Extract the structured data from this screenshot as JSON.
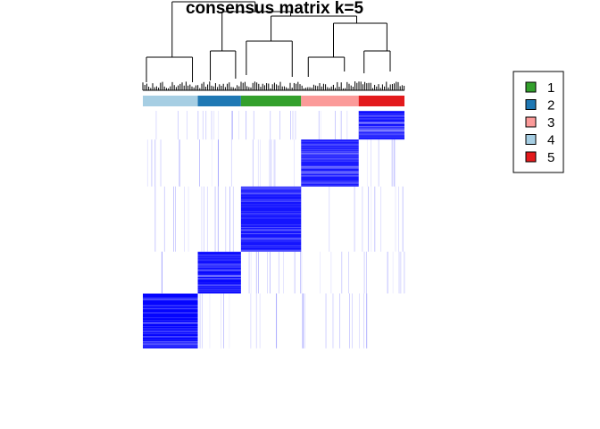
{
  "title": "consensus matrix k=5",
  "chart_data": {
    "type": "heatmap",
    "title": "consensus matrix k=5",
    "k": 5,
    "colors": {
      "matrix_high": "#0000FF",
      "matrix_low": "#FFFFFF",
      "class1": "#33A02C",
      "class2": "#1F78B4",
      "class3": "#FB9A99",
      "class4": "#A6CEE3",
      "class5": "#E31A1C"
    },
    "legend": {
      "position": "right",
      "entries": [
        {
          "label": "1",
          "color": "#33A02C"
        },
        {
          "label": "2",
          "color": "#1F78B4"
        },
        {
          "label": "3",
          "color": "#FB9A99"
        },
        {
          "label": "4",
          "color": "#A6CEE3"
        },
        {
          "label": "5",
          "color": "#E31A1C"
        }
      ]
    },
    "column_class_order": [
      "4",
      "2",
      "1",
      "3",
      "5"
    ],
    "class_fraction": [
      0.21,
      0.165,
      0.23,
      0.22,
      0.175
    ],
    "row_blocks": [
      {
        "class": "5",
        "fraction": 0.11,
        "within": 0.95
      },
      {
        "class": "3",
        "fraction": 0.18,
        "within": 0.9
      },
      {
        "class": "1",
        "fraction": 0.25,
        "within": 0.92
      },
      {
        "class": "2",
        "fraction": 0.16,
        "within": 0.97
      },
      {
        "class": "4",
        "fraction": 0.21,
        "within": 0.98
      }
    ],
    "top_annotation": "dendrogram"
  }
}
